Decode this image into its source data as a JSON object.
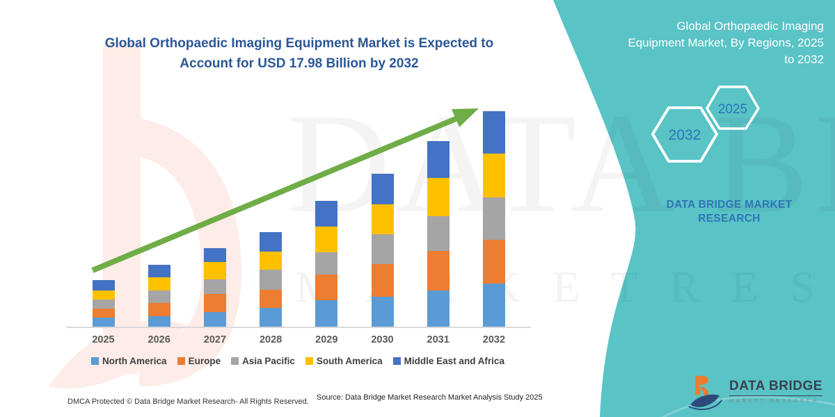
{
  "title": {
    "lines": [
      "Global Orthopaedic Imaging Equipment Market is Expected to",
      "Account for USD 17.98 Billion by 2032"
    ],
    "color": "#2b5797"
  },
  "chart_data": {
    "type": "bar",
    "stacked": true,
    "title": "Global Orthopaedic Imaging Equipment Market is Expected to Account for USD 17.98 Billion by 2032",
    "unit": "USD Billion",
    "categories": [
      "2025",
      "2026",
      "2027",
      "2028",
      "2029",
      "2030",
      "2031",
      "2032"
    ],
    "series": [
      {
        "name": "North America",
        "color": "#5B9BD5",
        "values": [
          0.74,
          0.87,
          1.22,
          1.57,
          2.2,
          2.49,
          3.02,
          3.6
        ]
      },
      {
        "name": "Europe",
        "color": "#ED7D31",
        "values": [
          0.77,
          1.12,
          1.51,
          1.51,
          2.15,
          2.73,
          3.31,
          3.65
        ]
      },
      {
        "name": "Asia Pacific",
        "color": "#A5A5A5",
        "values": [
          0.77,
          1.0,
          1.22,
          1.68,
          1.86,
          2.49,
          2.9,
          3.54
        ]
      },
      {
        "name": "South America",
        "color": "#FFC000",
        "values": [
          0.75,
          1.1,
          1.45,
          1.51,
          2.15,
          2.49,
          3.19,
          3.65
        ]
      },
      {
        "name": "Middle East and Africa",
        "color": "#4472C4",
        "values": [
          0.87,
          1.06,
          1.16,
          1.62,
          2.15,
          2.55,
          3.07,
          3.54
        ]
      }
    ],
    "totals_estimated": [
      3.9,
      5.15,
      6.56,
      7.89,
      10.51,
      12.75,
      15.49,
      17.98
    ],
    "highlight_value": "USD 17.98 Billion by 2032",
    "ylim": [
      0,
      18
    ],
    "gridlines": false,
    "y_axis_shown": false,
    "legend_position": "bottom",
    "trend_arrow": true,
    "trend_arrow_color": "#6fad47"
  },
  "side_panel": {
    "background": "#59c3c6",
    "title_lines": [
      "Global Orthopaedic Imaging",
      "Equipment Market, By Regions, 2025",
      "to 2032"
    ],
    "hexagons": [
      {
        "label": "2032"
      },
      {
        "label": "2025"
      }
    ],
    "org_lines": [
      "DATA BRIDGE MARKET",
      "RESEARCH"
    ],
    "text_color": "#2e75b6"
  },
  "brand_logo": {
    "name": "DATA BRIDGE",
    "tagline": "MARKET RESEARCH"
  },
  "footer": {
    "dmca": "DMCA Protected © Data Bridge Market Research- All Rights Reserved.",
    "source": "Source: Data Bridge Market Research Market Analysis Study 2025"
  },
  "watermarks": {
    "big": "DATA BRIDGE",
    "spaced": "M A R K E T   R E S E A R C H",
    "brand_letter": "b"
  }
}
